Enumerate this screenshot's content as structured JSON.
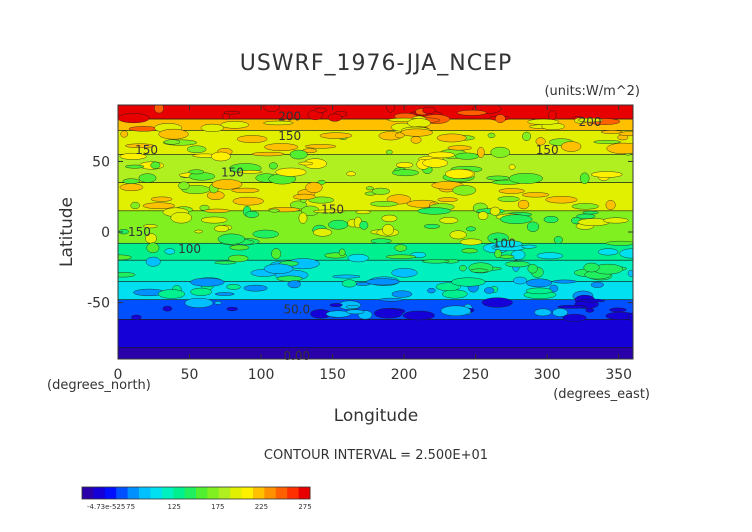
{
  "chart_data": {
    "type": "heatmap",
    "title": "USWRF_1976-JJA_NCEP",
    "units": "(units:W/m^2)",
    "xlabel": "Longitude",
    "ylabel": "Latitude",
    "x_unit_label": "(degrees_east)",
    "y_unit_label": "(degrees_north)",
    "xlim": [
      0,
      360
    ],
    "ylim": [
      -90,
      90
    ],
    "x_ticks": [
      {
        "value": 0,
        "label": "0"
      },
      {
        "value": 50,
        "label": "50"
      },
      {
        "value": 100,
        "label": "100"
      },
      {
        "value": 150,
        "label": "150"
      },
      {
        "value": 200,
        "label": "200"
      },
      {
        "value": 250,
        "label": "250"
      },
      {
        "value": 300,
        "label": "300"
      },
      {
        "value": 350,
        "label": "350"
      }
    ],
    "y_ticks": [
      {
        "value": 50,
        "label": "50"
      },
      {
        "value": 0,
        "label": "0"
      },
      {
        "value": -50,
        "label": "-50"
      }
    ],
    "contour_interval_text": "CONTOUR INTERVAL = 2.500E+01",
    "contour_labels": [
      {
        "text": "200",
        "lon": 120,
        "lat": 82
      },
      {
        "text": "150",
        "lon": 120,
        "lat": 68
      },
      {
        "text": "150",
        "lon": 20,
        "lat": 58
      },
      {
        "text": "150",
        "lon": 80,
        "lat": 42
      },
      {
        "text": "150",
        "lon": 150,
        "lat": 16
      },
      {
        "text": "150",
        "lon": 15,
        "lat": 0
      },
      {
        "text": "100",
        "lon": 50,
        "lat": -12
      },
      {
        "text": "100",
        "lon": 270,
        "lat": -8
      },
      {
        "text": "150",
        "lon": 300,
        "lat": 58
      },
      {
        "text": "200",
        "lon": 330,
        "lat": 78
      },
      {
        "text": "50.0",
        "lon": 125,
        "lat": -55
      },
      {
        "text": "0.00",
        "lon": 125,
        "lat": -88
      }
    ],
    "latitude_bands": [
      {
        "lat_min": 80,
        "lat_max": 90,
        "value": 240
      },
      {
        "lat_min": 72,
        "lat_max": 80,
        "value": 185
      },
      {
        "lat_min": 55,
        "lat_max": 72,
        "value": 160
      },
      {
        "lat_min": 35,
        "lat_max": 55,
        "value": 145
      },
      {
        "lat_min": 15,
        "lat_max": 35,
        "value": 160
      },
      {
        "lat_min": -8,
        "lat_max": 15,
        "value": 140
      },
      {
        "lat_min": -20,
        "lat_max": -8,
        "value": 105
      },
      {
        "lat_min": -35,
        "lat_max": -20,
        "value": 90
      },
      {
        "lat_min": -48,
        "lat_max": -35,
        "value": 70
      },
      {
        "lat_min": -62,
        "lat_max": -48,
        "value": 40
      },
      {
        "lat_min": -82,
        "lat_max": -62,
        "value": 15
      },
      {
        "lat_min": -90,
        "lat_max": -82,
        "value": 0
      }
    ],
    "colorbar": {
      "colors": [
        "#2a00a8",
        "#1500d8",
        "#0010ff",
        "#0050ff",
        "#0090ff",
        "#00c0ff",
        "#00e0f0",
        "#00f0c0",
        "#00f090",
        "#20f060",
        "#50f030",
        "#80f020",
        "#b0f020",
        "#e0f000",
        "#fff000",
        "#ffc000",
        "#ff9000",
        "#ff6000",
        "#ff3000",
        "#e80000"
      ],
      "tick_labels": [
        "-4.73e-525",
        "75",
        "125",
        "175",
        "225",
        "275"
      ]
    }
  }
}
